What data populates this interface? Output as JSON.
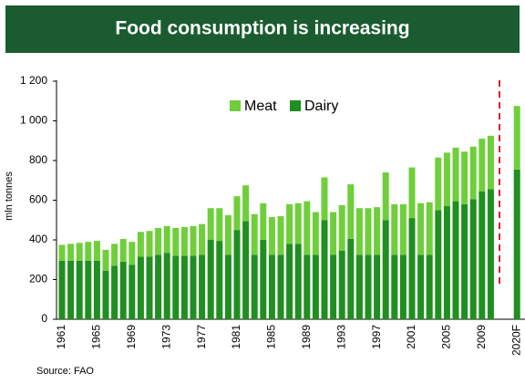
{
  "chart_data": {
    "type": "stacked_bar",
    "title": "Food consumption is increasing",
    "y_label": "mln tonnes",
    "source": "Source: FAO",
    "categories": [
      "1961",
      null,
      null,
      null,
      "1965",
      null,
      null,
      null,
      "1969",
      null,
      null,
      null,
      "1973",
      null,
      null,
      null,
      "1977",
      null,
      null,
      null,
      "1981",
      null,
      null,
      null,
      "1985",
      null,
      null,
      null,
      "1989",
      null,
      null,
      null,
      "1993",
      null,
      null,
      null,
      "1997",
      null,
      null,
      null,
      "2001",
      null,
      null,
      null,
      "2005",
      null,
      null,
      null,
      "2009",
      null,
      null,
      null,
      "2020F"
    ],
    "series": [
      {
        "name": "Dairy",
        "color": "#1f8f1f",
        "values": [
          295,
          295,
          295,
          295,
          295,
          245,
          270,
          290,
          275,
          315,
          315,
          325,
          335,
          320,
          320,
          320,
          325,
          400,
          395,
          325,
          450,
          495,
          325,
          400,
          325,
          325,
          380,
          380,
          325,
          325,
          500,
          325,
          345,
          405,
          325,
          325,
          325,
          500,
          325,
          325,
          510,
          325,
          325,
          550,
          570,
          595,
          580,
          605,
          645,
          655,
          null,
          null,
          755
        ]
      },
      {
        "name": "Meat",
        "color": "#6fcf3a",
        "values": [
          80,
          85,
          90,
          95,
          100,
          105,
          110,
          115,
          115,
          125,
          130,
          135,
          135,
          140,
          145,
          150,
          155,
          160,
          165,
          200,
          170,
          180,
          205,
          185,
          190,
          195,
          200,
          205,
          270,
          215,
          215,
          215,
          230,
          275,
          235,
          235,
          240,
          240,
          255,
          255,
          255,
          260,
          265,
          265,
          270,
          270,
          265,
          265,
          265,
          270,
          null,
          null,
          320
        ]
      }
    ],
    "ylim": [
      0,
      1200
    ],
    "yticks": [
      0,
      200,
      400,
      600,
      800,
      {
        "value": 1000,
        "label": "1 000"
      },
      {
        "value": 1200,
        "label": "1 200"
      }
    ],
    "grid": false
  }
}
